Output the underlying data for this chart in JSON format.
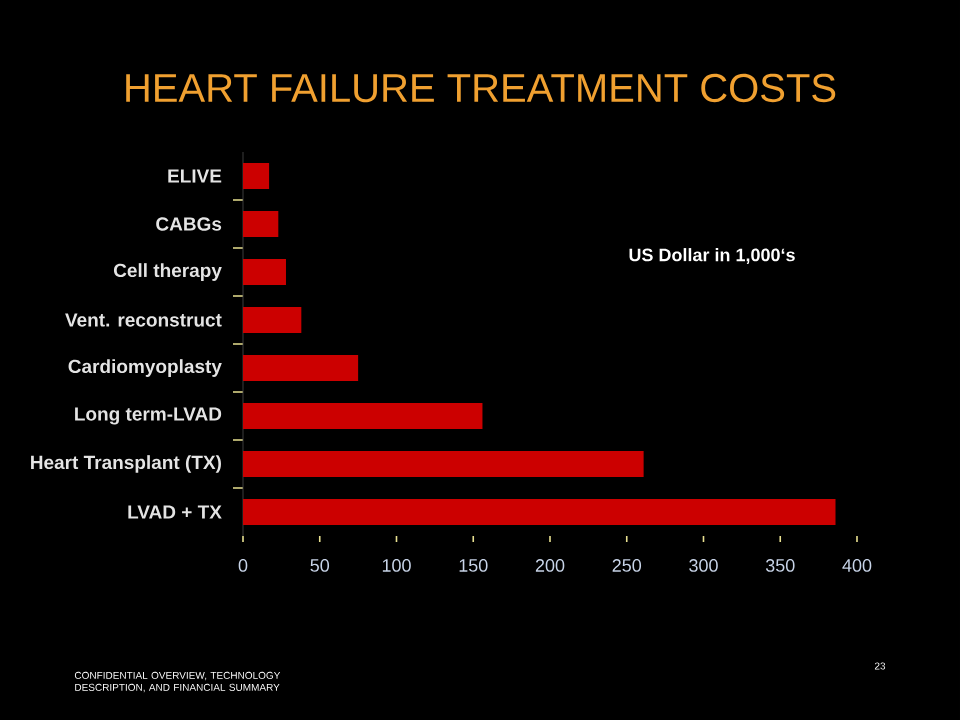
{
  "chart_data": {
    "type": "bar",
    "orientation": "horizontal",
    "title": "HEART FAILURE TREATMENT COSTS",
    "categories": [
      "ELIVE",
      "CABGs",
      "Cell therapy",
      "Vent. reconstruct",
      "Cardiomyoplasty",
      "Long term-LVAD",
      "Heart Transplant (TX)",
      "LVAD + TX"
    ],
    "values": [
      17,
      23,
      28,
      38,
      75,
      156,
      261,
      386
    ],
    "color": "#cc0000",
    "xlim": [
      0,
      400
    ],
    "xticks": [
      0,
      50,
      100,
      150,
      200,
      250,
      300,
      350,
      400
    ],
    "annotations": [
      "US Dollar in 1,000‘s",
      "CONFIDENTIAL OVERVIEW, TECHNOLOGY DESCRIPTION, AND FINANCIAL SUMMARY",
      "23"
    ]
  }
}
